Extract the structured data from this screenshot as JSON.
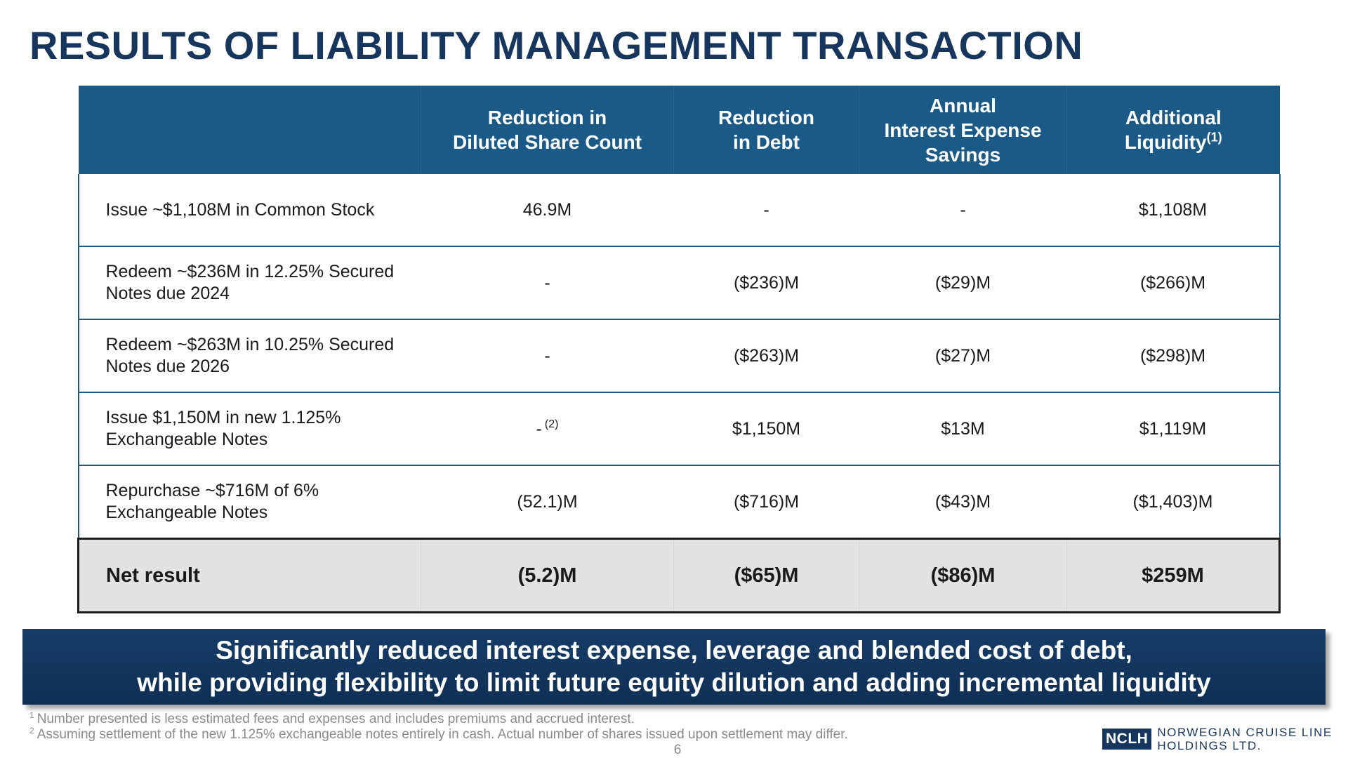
{
  "title": "RESULTS OF LIABILITY MANAGEMENT TRANSACTION",
  "table": {
    "headers": [
      {
        "lines": [
          ""
        ],
        "note": ""
      },
      {
        "lines": [
          "Reduction in",
          "Diluted Share Count"
        ],
        "note": ""
      },
      {
        "lines": [
          "Reduction",
          "in Debt"
        ],
        "note": ""
      },
      {
        "lines": [
          "Annual",
          "Interest Expense",
          "Savings"
        ],
        "note": ""
      },
      {
        "lines": [
          "Additional",
          "Liquidity"
        ],
        "note": "(1)"
      }
    ],
    "rows": [
      {
        "label": [
          "Issue ~$1,108M in Common Stock"
        ],
        "shares": "46.9M",
        "shares_note": "",
        "debt": "-",
        "interest": "-",
        "liquidity": "$1,108M"
      },
      {
        "label": [
          "Redeem ~$236M in 12.25% Secured",
          "Notes due 2024"
        ],
        "shares": "-",
        "shares_note": "",
        "debt": "($236)M",
        "interest": "($29)M",
        "liquidity": "($266)M"
      },
      {
        "label": [
          "Redeem ~$263M in 10.25% Secured",
          "Notes due 2026"
        ],
        "shares": "-",
        "shares_note": "",
        "debt": "($263)M",
        "interest": "($27)M",
        "liquidity": "($298)M"
      },
      {
        "label": [
          "Issue $1,150M in new 1.125%",
          "Exchangeable Notes"
        ],
        "shares": "-",
        "shares_note": "(2)",
        "debt": "$1,150M",
        "interest": "$13M",
        "liquidity": "$1,119M"
      },
      {
        "label": [
          "Repurchase ~$716M of 6%",
          "Exchangeable Notes"
        ],
        "shares": "(52.1)M",
        "shares_note": "",
        "debt": "($716)M",
        "interest": "($43)M",
        "liquidity": "($1,403)M"
      }
    ],
    "net": {
      "label": "Net result",
      "shares": "(5.2)M",
      "debt": "($65)M",
      "interest": "($86)M",
      "liquidity": "$259M"
    }
  },
  "banner": {
    "line1": "Significantly reduced interest expense, leverage and blended cost of debt,",
    "line2": "while providing flexibility to limit future equity dilution and adding incremental liquidity"
  },
  "footnotes": [
    {
      "mark": "1",
      "text": "Number presented is less estimated fees and expenses and includes premiums and accrued interest."
    },
    {
      "mark": "2",
      "text": "Assuming settlement of the new 1.125% exchangeable notes entirely in cash. Actual number of shares issued upon settlement may differ."
    }
  ],
  "page_number": "6",
  "logo": {
    "mark": "NCLH",
    "line1": "NORWEGIAN CRUISE LINE",
    "line2": "HOLDINGS LTD."
  },
  "colors": {
    "title": "#17365d",
    "header_bg": "#1b5a87",
    "banner_bg": "#0f2f55",
    "net_row_bg": "#e2e2e2"
  }
}
